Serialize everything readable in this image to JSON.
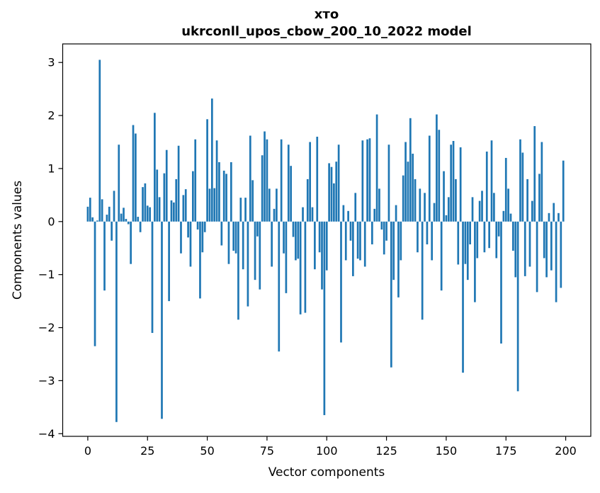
{
  "colors": {
    "bar": "#1f77b4",
    "axis": "#000000",
    "text": "#000000",
    "background": "#ffffff"
  },
  "chart_data": {
    "type": "bar",
    "title": "хто",
    "subtitle": "ukrconll_upos_cbow_200_10_2022 model",
    "xlabel": "Vector components",
    "ylabel": "Components values",
    "legend": null,
    "grid": false,
    "n_bars": 200,
    "bar_width_units": 0.8,
    "xlim": [
      -10.5,
      210.5
    ],
    "ylim": [
      -4.05,
      3.35
    ],
    "x_ticks": [
      0,
      25,
      50,
      75,
      100,
      125,
      150,
      175,
      200
    ],
    "x_tick_labels": [
      "0",
      "25",
      "50",
      "75",
      "100",
      "125",
      "150",
      "175",
      "200"
    ],
    "y_ticks": [
      3,
      2,
      1,
      0,
      -1,
      -2,
      -3,
      -4
    ],
    "y_tick_labels": [
      "3",
      "2",
      "1",
      "0",
      "−1",
      "−2",
      "−3",
      "−4"
    ],
    "values": [
      0.28,
      0.45,
      0.08,
      -2.35,
      0.02,
      3.05,
      0.42,
      -1.3,
      0.13,
      0.28,
      -0.36,
      0.58,
      -3.78,
      1.45,
      0.15,
      0.26,
      0.05,
      -0.05,
      -0.8,
      1.82,
      1.66,
      0.09,
      -0.2,
      0.65,
      0.72,
      0.3,
      0.27,
      -2.1,
      2.05,
      0.98,
      0.46,
      -3.72,
      0.91,
      1.35,
      -1.5,
      0.4,
      0.36,
      0.8,
      1.43,
      -0.6,
      0.5,
      0.61,
      -0.3,
      -0.85,
      0.95,
      1.55,
      -0.15,
      -1.45,
      -0.58,
      -0.2,
      1.93,
      0.62,
      2.32,
      0.63,
      1.53,
      1.12,
      -0.45,
      0.96,
      0.9,
      -0.8,
      1.12,
      -0.55,
      -0.6,
      -1.85,
      0.45,
      -0.9,
      0.45,
      -1.6,
      1.62,
      0.78,
      -1.1,
      -0.28,
      -1.28,
      1.25,
      1.7,
      1.55,
      0.62,
      -0.85,
      0.24,
      0.62,
      -2.45,
      1.55,
      -0.6,
      -1.35,
      1.45,
      1.05,
      -0.29,
      -0.73,
      -0.7,
      -1.75,
      0.27,
      -1.72,
      0.8,
      1.5,
      0.27,
      -0.9,
      1.6,
      -0.58,
      -1.28,
      -3.65,
      -0.92,
      1.1,
      1.03,
      0.72,
      1.13,
      1.45,
      -2.28,
      0.31,
      -0.73,
      0.2,
      -0.36,
      -1.03,
      0.54,
      -0.7,
      -0.73,
      1.53,
      -0.85,
      1.55,
      1.57,
      -0.43,
      0.24,
      2.02,
      0.62,
      -0.15,
      -0.62,
      -0.36,
      1.45,
      -2.75,
      -1.1,
      0.31,
      -1.43,
      -0.73,
      0.87,
      1.5,
      1.13,
      1.95,
      1.28,
      0.8,
      -0.58,
      0.62,
      -1.85,
      0.54,
      -0.43,
      1.62,
      -0.73,
      0.35,
      2.02,
      1.73,
      -1.3,
      0.95,
      0.12,
      0.46,
      1.45,
      1.52,
      0.8,
      -0.81,
      1.4,
      -2.85,
      -0.8,
      -1.1,
      -0.43,
      0.46,
      -1.52,
      -0.69,
      0.39,
      0.58,
      -0.58,
      1.32,
      -0.5,
      1.53,
      0.54,
      -0.69,
      -0.28,
      -2.3,
      0.2,
      1.2,
      0.62,
      0.15,
      -0.55,
      -1.05,
      -3.2,
      1.55,
      1.3,
      -1.03,
      0.8,
      -0.85,
      0.39,
      1.8,
      -1.33,
      0.9,
      1.5,
      -0.69,
      -1.05,
      0.16,
      -0.92,
      0.35,
      -1.52,
      0.16,
      -1.25,
      1.15
    ]
  }
}
